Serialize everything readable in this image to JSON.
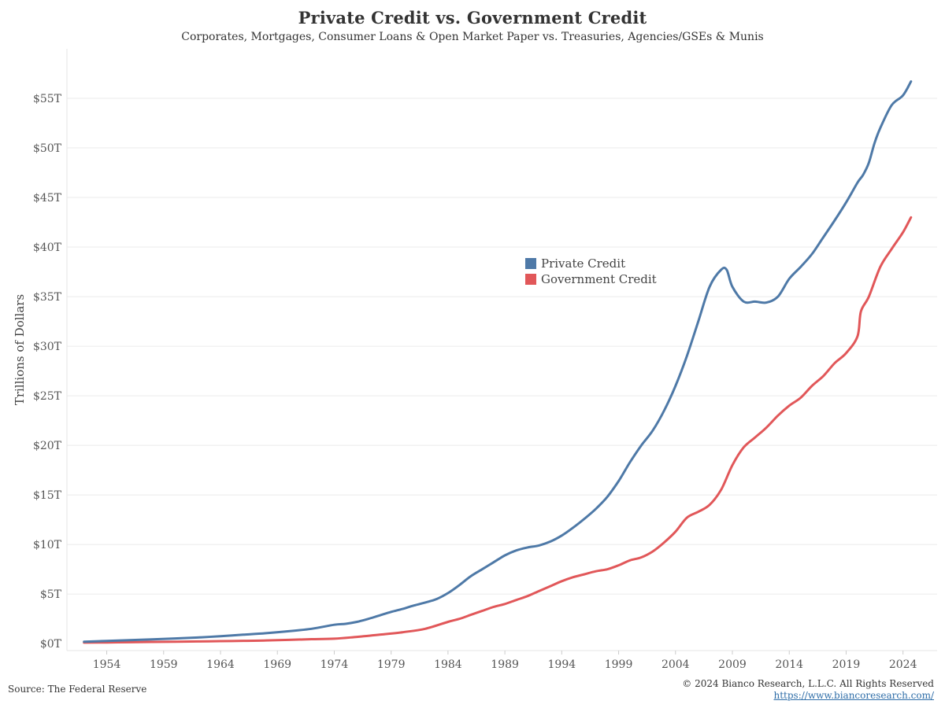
{
  "footer": {
    "source": "Source: The Federal Reserve",
    "copyright": "© 2024 Bianco Research, L.L.C. All Rights Reserved",
    "url": "https://www.biancoresearch.com/"
  },
  "chart_data": {
    "type": "line",
    "title": "Private Credit vs. Government Credit",
    "subtitle": "Corporates, Mortgages, Consumer Loans & Open Market Paper vs. Treasuries, Agencies/GSEs & Munis",
    "xlabel": "",
    "ylabel": "Trillions of Dollars",
    "xlim": [
      1950.5,
      2027
    ],
    "ylim": [
      -0.7,
      60
    ],
    "x_ticks": [
      1954,
      1959,
      1964,
      1969,
      1974,
      1979,
      1984,
      1989,
      1994,
      1999,
      2004,
      2009,
      2014,
      2019,
      2024
    ],
    "y_ticks": [
      0,
      5,
      10,
      15,
      20,
      25,
      30,
      35,
      40,
      45,
      50,
      55
    ],
    "y_tick_labels": [
      "$0T",
      "$5T",
      "$10T",
      "$15T",
      "$20T",
      "$25T",
      "$30T",
      "$35T",
      "$40T",
      "$45T",
      "$50T",
      "$55T"
    ],
    "grid": true,
    "legend_position": "center",
    "series": [
      {
        "name": "Private Credit",
        "color": "#4e79a7",
        "x": [
          1952,
          1954,
          1956,
          1958,
          1960,
          1962,
          1964,
          1966,
          1968,
          1970,
          1972,
          1974,
          1975,
          1976,
          1977,
          1978,
          1979,
          1980,
          1981,
          1982,
          1983,
          1984,
          1985,
          1986,
          1987,
          1988,
          1989,
          1990,
          1991,
          1992,
          1993,
          1994,
          1995,
          1996,
          1997,
          1998,
          1999,
          2000,
          2001,
          2002,
          2003,
          2004,
          2005,
          2006,
          2007,
          2008,
          2008.5,
          2009,
          2010,
          2011,
          2012,
          2013,
          2014,
          2015,
          2016,
          2017,
          2018,
          2019,
          2020,
          2020.5,
          2021,
          2021.5,
          2022,
          2023,
          2024,
          2024.7
        ],
        "values": [
          0.2,
          0.27,
          0.35,
          0.43,
          0.52,
          0.62,
          0.75,
          0.9,
          1.05,
          1.25,
          1.5,
          1.9,
          2.0,
          2.2,
          2.5,
          2.85,
          3.2,
          3.5,
          3.85,
          4.15,
          4.5,
          5.1,
          5.9,
          6.8,
          7.5,
          8.2,
          8.9,
          9.4,
          9.7,
          9.9,
          10.3,
          10.9,
          11.7,
          12.6,
          13.6,
          14.8,
          16.4,
          18.3,
          20.0,
          21.5,
          23.5,
          26.0,
          29.0,
          32.5,
          36.0,
          37.7,
          37.7,
          36.0,
          34.5,
          34.5,
          34.4,
          35.0,
          36.8,
          38.0,
          39.3,
          41.0,
          42.7,
          44.5,
          46.5,
          47.3,
          48.5,
          50.5,
          52.0,
          54.3,
          55.3,
          56.7
        ]
      },
      {
        "name": "Government Credit",
        "color": "#e15759",
        "x": [
          1952,
          1954,
          1956,
          1958,
          1960,
          1962,
          1964,
          1966,
          1968,
          1970,
          1972,
          1974,
          1976,
          1978,
          1980,
          1982,
          1984,
          1985,
          1986,
          1987,
          1988,
          1989,
          1990,
          1991,
          1992,
          1993,
          1994,
          1995,
          1996,
          1997,
          1998,
          1999,
          2000,
          2001,
          2002,
          2003,
          2004,
          2005,
          2006,
          2007,
          2008,
          2009,
          2010,
          2011,
          2012,
          2013,
          2014,
          2015,
          2016,
          2017,
          2018,
          2019,
          2020,
          2020.3,
          2021,
          2022,
          2023,
          2024,
          2024.7
        ],
        "values": [
          0.1,
          0.12,
          0.14,
          0.17,
          0.2,
          0.22,
          0.25,
          0.28,
          0.32,
          0.38,
          0.45,
          0.5,
          0.68,
          0.9,
          1.15,
          1.5,
          2.2,
          2.5,
          2.9,
          3.3,
          3.7,
          4.0,
          4.4,
          4.8,
          5.3,
          5.8,
          6.3,
          6.7,
          7.0,
          7.3,
          7.5,
          7.9,
          8.4,
          8.7,
          9.3,
          10.2,
          11.3,
          12.7,
          13.3,
          14.0,
          15.5,
          18.0,
          19.8,
          20.8,
          21.8,
          23.0,
          24.0,
          24.8,
          26.0,
          27.0,
          28.3,
          29.3,
          31.0,
          33.5,
          35.0,
          38.0,
          39.8,
          41.5,
          43.0
        ]
      }
    ]
  }
}
